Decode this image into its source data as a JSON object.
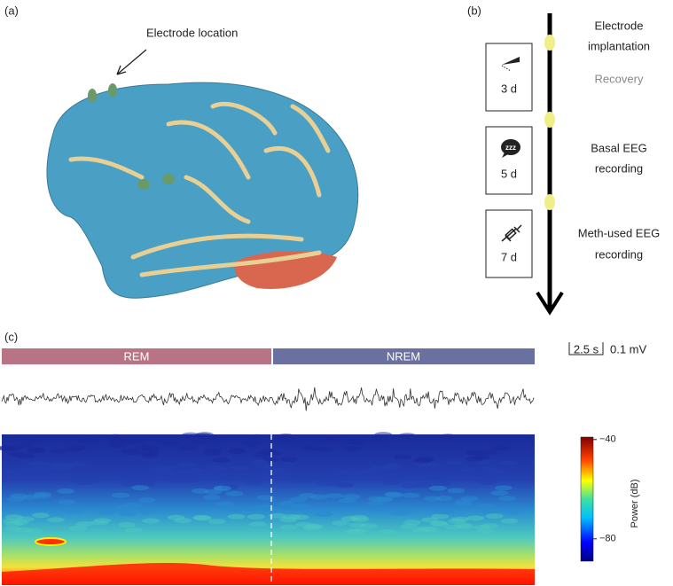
{
  "panel_a": {
    "label": "(a)",
    "annotation": "Electrode location"
  },
  "panel_b": {
    "label": "(b)",
    "stages": [
      {
        "lines": [
          "Electrode",
          "implantation"
        ]
      },
      {
        "duration": "3 d",
        "lines": [
          "Recovery"
        ]
      },
      {
        "duration": "5 d",
        "lines": [
          "Basal EEG",
          "recording"
        ]
      },
      {
        "duration": "7 d",
        "lines": [
          "Meth-used EEG",
          "recording"
        ]
      }
    ]
  },
  "panel_c": {
    "label": "(c)",
    "states": [
      "REM",
      "NREM"
    ],
    "scale_bar": {
      "time": "2.5 s",
      "amplitude": "0.1 mV"
    },
    "colorbar": {
      "label": "Power (dB)",
      "lim": [
        -89,
        -39
      ],
      "ticks": [
        {
          "value": -40,
          "label": "−40"
        },
        {
          "value": -80,
          "label": "−80"
        }
      ]
    }
  }
}
